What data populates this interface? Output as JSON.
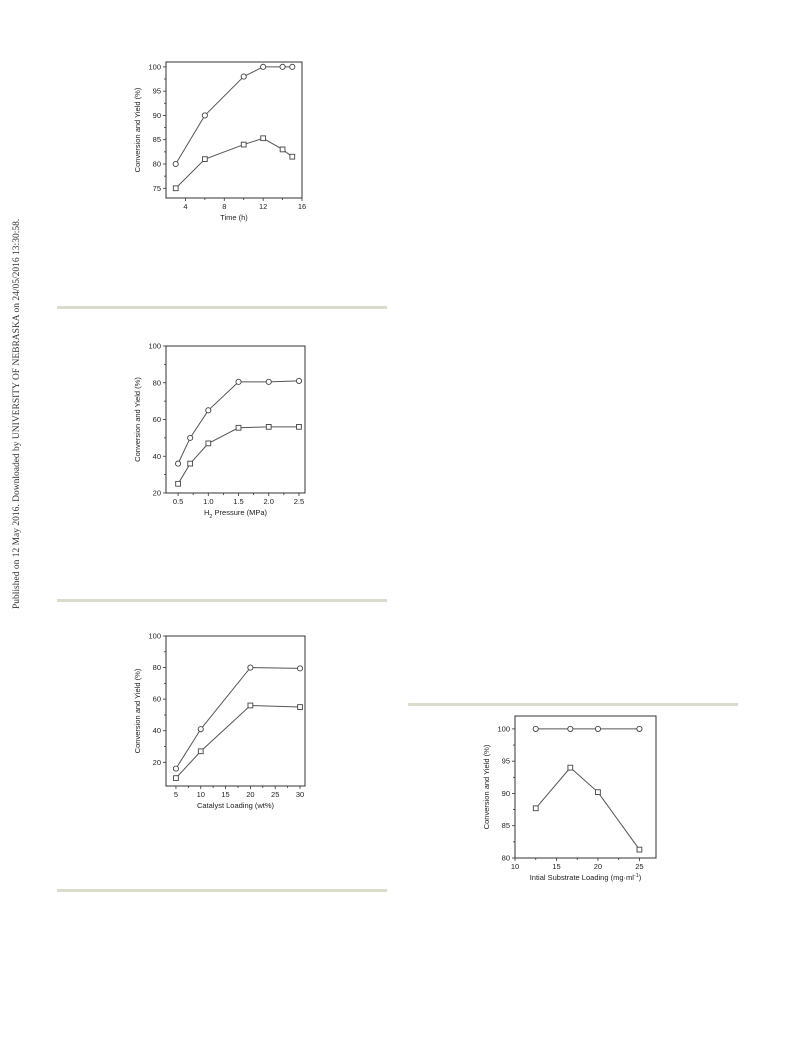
{
  "watermark": {
    "text": "Published on 12 May 2016. Downloaded by UNIVERSITY OF NEBRASKA on 24/05/2016 13:30:58."
  },
  "chart_data": [
    {
      "type": "line",
      "xlabel": "Time (h)",
      "ylabel": "Conversion and Yield (%)",
      "xlim": [
        2,
        16
      ],
      "ylim": [
        73,
        101
      ],
      "xticks": [
        4,
        8,
        12,
        16
      ],
      "yticks": [
        75,
        80,
        85,
        90,
        95,
        100
      ],
      "series": [
        {
          "marker": "circle",
          "x": [
            3,
            6,
            10,
            12,
            14,
            15
          ],
          "values": [
            80,
            90,
            98,
            100,
            100,
            100
          ]
        },
        {
          "marker": "square",
          "x": [
            3,
            6,
            10,
            12,
            14,
            15
          ],
          "values": [
            75,
            81,
            84,
            85.3,
            83,
            81.5
          ]
        }
      ]
    },
    {
      "type": "line",
      "xlabel_main": "H",
      "xlabel_sub": "2",
      "xlabel_rest": " Pressure (MPa)",
      "ylabel": "Conversion and Yield (%)",
      "xlim": [
        0.3,
        2.6
      ],
      "ylim": [
        20,
        100
      ],
      "xticks": [
        0.5,
        1.0,
        1.5,
        2.0,
        2.5
      ],
      "xticklabels": [
        "0.5",
        "1.0",
        "1.5",
        "2.0",
        "2.5"
      ],
      "yticks": [
        20,
        40,
        60,
        80,
        100
      ],
      "series": [
        {
          "marker": "circle",
          "x": [
            0.5,
            0.7,
            1.0,
            1.5,
            2.0,
            2.5
          ],
          "values": [
            36,
            50,
            65,
            80.5,
            80.5,
            81
          ]
        },
        {
          "marker": "square",
          "x": [
            0.5,
            0.7,
            1.0,
            1.5,
            2.0,
            2.5
          ],
          "values": [
            25,
            36,
            47,
            55.5,
            56,
            56
          ]
        }
      ]
    },
    {
      "type": "line",
      "xlabel": "Catalyst Loading (wt%)",
      "ylabel": "Conversion and Yield (%)",
      "xlim": [
        3,
        31
      ],
      "ylim": [
        5,
        100
      ],
      "xticks": [
        5,
        10,
        15,
        20,
        25,
        30
      ],
      "yticks": [
        20,
        40,
        60,
        80,
        100
      ],
      "series": [
        {
          "marker": "circle",
          "x": [
            5,
            10,
            20,
            30
          ],
          "values": [
            16,
            41,
            80,
            79.5
          ]
        },
        {
          "marker": "square",
          "x": [
            5,
            10,
            20,
            30
          ],
          "values": [
            10,
            27,
            56,
            55
          ]
        }
      ]
    },
    {
      "type": "line",
      "xlabel_main": "Intial Substrate Loading (mg·ml",
      "xlabel_sup": "-1",
      "xlabel_end": ")",
      "ylabel": "Conversion and Yield (%)",
      "xlim": [
        10,
        27
      ],
      "ylim": [
        80,
        102
      ],
      "xticks": [
        10,
        15,
        20,
        25
      ],
      "yticks": [
        80,
        85,
        90,
        95,
        100
      ],
      "series": [
        {
          "marker": "circle",
          "x": [
            12.5,
            16.67,
            20,
            25
          ],
          "values": [
            100,
            100,
            100,
            100
          ]
        },
        {
          "marker": "square",
          "x": [
            12.5,
            16.67,
            20,
            25
          ],
          "values": [
            87.7,
            94,
            90.2,
            81.3
          ]
        }
      ]
    }
  ]
}
